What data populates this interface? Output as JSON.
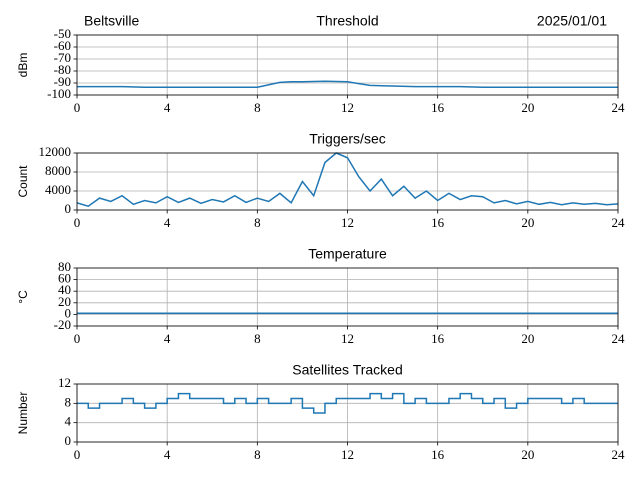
{
  "chart_data": [
    {
      "type": "line",
      "title": "Threshold",
      "left_title": "Beltsville",
      "right_title": "2025/01/01",
      "ylabel": "dBm",
      "x": [
        0,
        1,
        2,
        3,
        4,
        5,
        6,
        7,
        8,
        9,
        9.5,
        10,
        11,
        12,
        12.5,
        13,
        14,
        15,
        16,
        17,
        18,
        19,
        20,
        21,
        22,
        23,
        24
      ],
      "values": [
        -93,
        -93,
        -93,
        -93.5,
        -93.5,
        -93.5,
        -93.5,
        -93.5,
        -93.5,
        -89.5,
        -89,
        -89,
        -88.5,
        -89,
        -90.5,
        -92,
        -92.5,
        -93,
        -93,
        -93,
        -93.5,
        -93.5,
        -93.5,
        -93.5,
        -93.5,
        -93.5,
        -93.5
      ],
      "color": "#1f77b4",
      "xlim": [
        0,
        24
      ],
      "xticks": [
        0,
        4,
        8,
        12,
        16,
        20,
        24
      ],
      "ylim": [
        -100,
        -50
      ],
      "yticks": [
        -100,
        -90,
        -80,
        -70,
        -60,
        -50
      ],
      "grid": true
    },
    {
      "type": "line",
      "title": "Triggers/sec",
      "ylabel": "Count",
      "x": [
        0,
        0.5,
        1,
        1.5,
        2,
        2.5,
        3,
        3.5,
        4,
        4.5,
        5,
        5.5,
        6,
        6.5,
        7,
        7.5,
        8,
        8.5,
        9,
        9.5,
        10,
        10.5,
        11,
        11.5,
        12,
        12.5,
        13,
        13.5,
        14,
        14.5,
        15,
        15.5,
        16,
        16.5,
        17,
        17.5,
        18,
        18.5,
        19,
        19.5,
        20,
        20.5,
        21,
        21.5,
        22,
        22.5,
        23,
        23.5,
        24
      ],
      "values": [
        1500,
        800,
        2500,
        1800,
        3000,
        1200,
        2000,
        1500,
        2800,
        1600,
        2500,
        1400,
        2200,
        1700,
        3000,
        1600,
        2500,
        1800,
        3500,
        1500,
        6000,
        3000,
        10000,
        12000,
        11000,
        7000,
        4000,
        6500,
        3000,
        5000,
        2500,
        4000,
        2000,
        3500,
        2200,
        3000,
        2800,
        1500,
        2000,
        1300,
        1800,
        1200,
        1600,
        1100,
        1500,
        1200,
        1400,
        1100,
        1300
      ],
      "color": "#1f77b4",
      "xlim": [
        0,
        24
      ],
      "xticks": [
        0,
        4,
        8,
        12,
        16,
        20,
        24
      ],
      "ylim": [
        0,
        12000
      ],
      "yticks": [
        0,
        4000,
        8000,
        12000
      ],
      "grid": true
    },
    {
      "type": "line",
      "title": "Temperature",
      "ylabel": "°C",
      "x": [
        0,
        24
      ],
      "values": [
        2,
        2
      ],
      "color": "#1f77b4",
      "xlim": [
        0,
        24
      ],
      "xticks": [
        0,
        4,
        8,
        12,
        16,
        20,
        24
      ],
      "ylim": [
        -20,
        80
      ],
      "yticks": [
        -20,
        0,
        20,
        40,
        60,
        80
      ],
      "grid": true
    },
    {
      "type": "line",
      "title": "Satellites Tracked",
      "ylabel": "Number",
      "step": true,
      "x": [
        0,
        0.5,
        1,
        1.5,
        2,
        2.5,
        3,
        3.5,
        4,
        4.5,
        5,
        5.5,
        6,
        6.5,
        7,
        7.5,
        8,
        8.5,
        9,
        9.5,
        10,
        10.5,
        11,
        11.5,
        12,
        12.5,
        13,
        13.5,
        14,
        14.5,
        15,
        15.5,
        16,
        16.5,
        17,
        17.5,
        18,
        18.5,
        19,
        19.5,
        20,
        20.5,
        21,
        21.5,
        22,
        22.5,
        23,
        23.5,
        24
      ],
      "values": [
        8,
        7,
        8,
        8,
        9,
        8,
        7,
        8,
        9,
        10,
        9,
        9,
        9,
        8,
        9,
        8,
        9,
        8,
        8,
        9,
        7,
        6,
        8,
        9,
        9,
        9,
        10,
        9,
        10,
        8,
        9,
        8,
        8,
        9,
        10,
        9,
        8,
        9,
        7,
        8,
        9,
        9,
        9,
        8,
        9,
        8,
        8,
        8,
        8
      ],
      "color": "#1f77b4",
      "xlim": [
        0,
        24
      ],
      "xticks": [
        0,
        4,
        8,
        12,
        16,
        20,
        24
      ],
      "ylim": [
        0,
        12
      ],
      "yticks": [
        0,
        4,
        8,
        12
      ],
      "grid": true
    }
  ]
}
